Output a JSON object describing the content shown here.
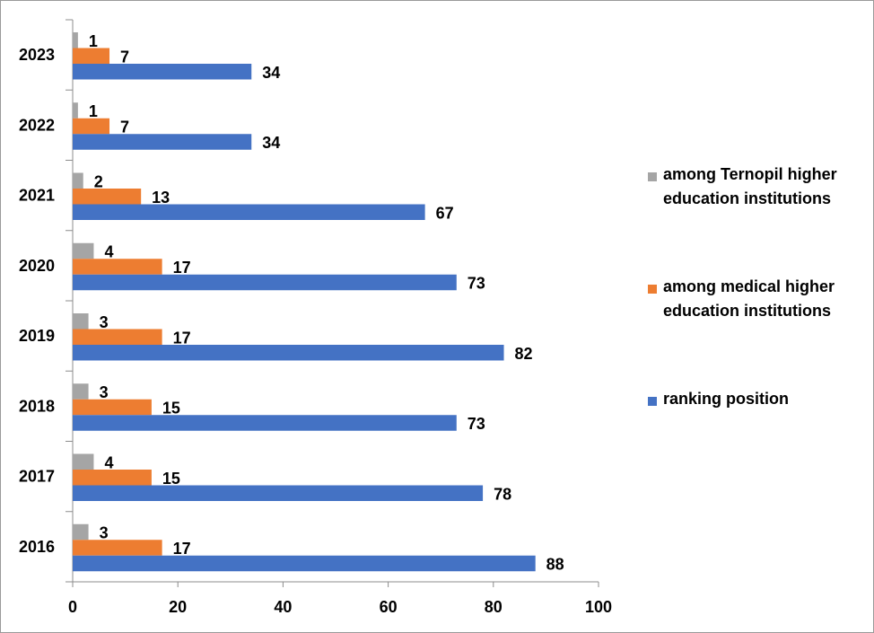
{
  "chart_data": {
    "type": "bar",
    "orientation": "horizontal",
    "categories": [
      "2016",
      "2017",
      "2018",
      "2019",
      "2020",
      "2021",
      "2022",
      "2023"
    ],
    "series": [
      {
        "name": "among Ternopil higher education institutions",
        "color": "#A5A5A5",
        "values": [
          3,
          4,
          3,
          3,
          4,
          2,
          1,
          1
        ]
      },
      {
        "name": "among medical higher education institutions",
        "color": "#ED7D31",
        "values": [
          17,
          15,
          15,
          17,
          17,
          13,
          7,
          7
        ]
      },
      {
        "name": "ranking position",
        "color": "#4472C4",
        "values": [
          88,
          78,
          73,
          82,
          73,
          67,
          34,
          34
        ]
      }
    ],
    "xlim": [
      0,
      100
    ],
    "xticks": [
      "0",
      "20",
      "40",
      "60",
      "80",
      "100"
    ],
    "xlabel": "",
    "ylabel": "",
    "title": "",
    "grid": false,
    "legend_position": "right"
  }
}
